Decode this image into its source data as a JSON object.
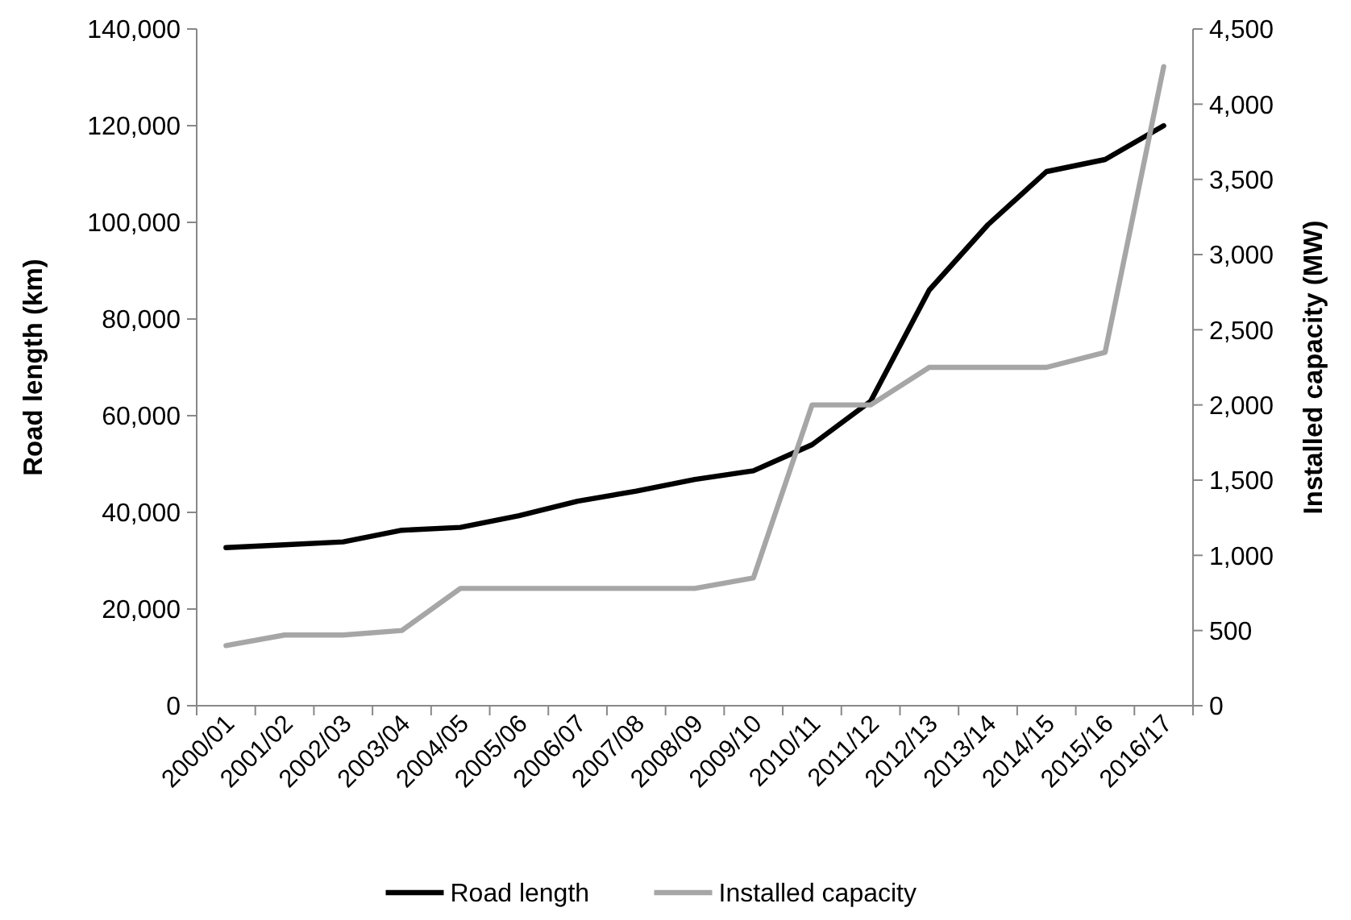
{
  "chart_data": {
    "type": "line",
    "ylabel": "Road length (km)",
    "y2label": "Installed capacity (MW)",
    "categories": [
      "2000/01",
      "2001/02",
      "2002/03",
      "2003/04",
      "2004/05",
      "2005/06",
      "2006/07",
      "2007/08",
      "2008/09",
      "2009/10",
      "2010/11",
      "2011/12",
      "2012/13",
      "2013/14",
      "2014/15",
      "2015/16",
      "2016/17"
    ],
    "series": [
      {
        "name": "Road length",
        "color": "#000000",
        "values": [
          32700,
          33300,
          33900,
          36300,
          36900,
          39300,
          42300,
          44400,
          46800,
          48600,
          54000,
          63000,
          86000,
          99500,
          110500,
          113000,
          120000
        ]
      },
      {
        "name": "Installed capacity",
        "color": "#a6a6a6",
        "axis": "y2",
        "values": [
          400,
          470,
          470,
          500,
          780,
          780,
          780,
          780,
          780,
          850,
          2000,
          2000,
          2250,
          2250,
          2250,
          2350,
          4250
        ]
      }
    ],
    "ylim": [
      0,
      140000
    ],
    "yticks": [
      {
        "value": 0,
        "label": "0"
      },
      {
        "value": 20000,
        "label": "20,000"
      },
      {
        "value": 40000,
        "label": "40,000"
      },
      {
        "value": 60000,
        "label": "60,000"
      },
      {
        "value": 80000,
        "label": "80,000"
      },
      {
        "value": 100000,
        "label": "100,000"
      },
      {
        "value": 120000,
        "label": "120,000"
      },
      {
        "value": 140000,
        "label": "140,000"
      }
    ],
    "y2lim": [
      0,
      4500
    ],
    "y2ticks": [
      {
        "value": 0,
        "label": "0"
      },
      {
        "value": 500,
        "label": "500"
      },
      {
        "value": 1000,
        "label": "1,000"
      },
      {
        "value": 1500,
        "label": "1,500"
      },
      {
        "value": 2000,
        "label": "2,000"
      },
      {
        "value": 2500,
        "label": "2,500"
      },
      {
        "value": 3000,
        "label": "3,000"
      },
      {
        "value": 3500,
        "label": "3,500"
      },
      {
        "value": 4000,
        "label": "4,000"
      },
      {
        "value": 4500,
        "label": "4,500"
      }
    ],
    "grid": false,
    "legend": "bottom",
    "marker": "none",
    "line_style": "solid"
  }
}
